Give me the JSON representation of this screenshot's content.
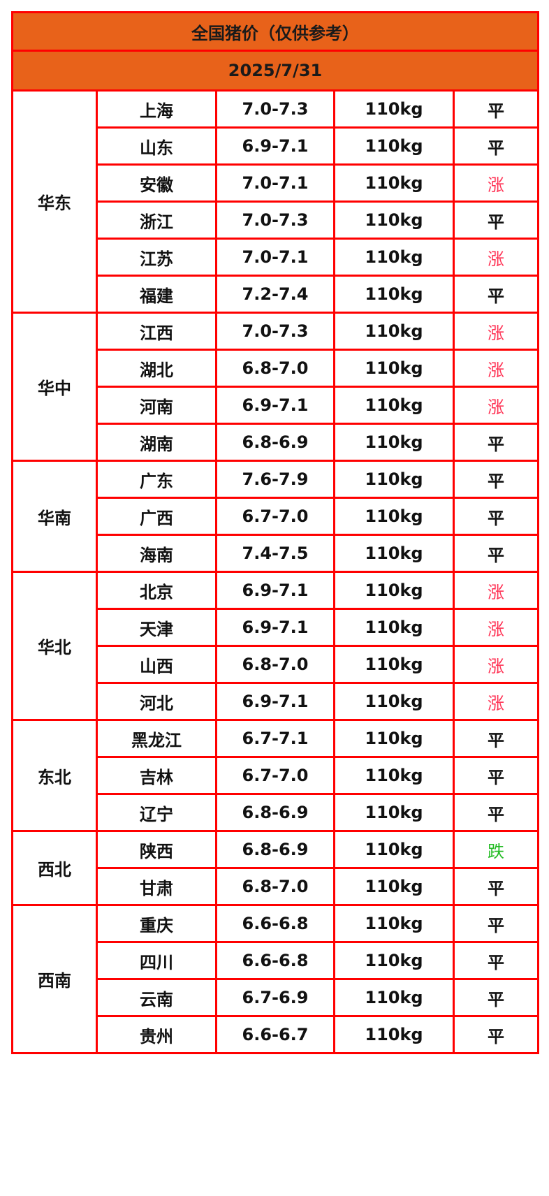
{
  "title": "全国猪价（仅供参考）",
  "date": "2025/7/31",
  "colors": {
    "header_bg": "#e8621a",
    "border": "#ff0000",
    "up": "#ff3355",
    "down": "#22bb22",
    "flat": "#111111"
  },
  "regions": [
    {
      "name": "华东",
      "rows": [
        {
          "province": "上海",
          "price": "7.0-7.3",
          "weight": "110kg",
          "trend": "平"
        },
        {
          "province": "山东",
          "price": "6.9-7.1",
          "weight": "110kg",
          "trend": "平"
        },
        {
          "province": "安徽",
          "price": "7.0-7.1",
          "weight": "110kg",
          "trend": "涨"
        },
        {
          "province": "浙江",
          "price": "7.0-7.3",
          "weight": "110kg",
          "trend": "平"
        },
        {
          "province": "江苏",
          "price": "7.0-7.1",
          "weight": "110kg",
          "trend": "涨"
        },
        {
          "province": "福建",
          "price": "7.2-7.4",
          "weight": "110kg",
          "trend": "平"
        }
      ]
    },
    {
      "name": "华中",
      "rows": [
        {
          "province": "江西",
          "price": "7.0-7.3",
          "weight": "110kg",
          "trend": "涨"
        },
        {
          "province": "湖北",
          "price": "6.8-7.0",
          "weight": "110kg",
          "trend": "涨"
        },
        {
          "province": "河南",
          "price": "6.9-7.1",
          "weight": "110kg",
          "trend": "涨"
        },
        {
          "province": "湖南",
          "price": "6.8-6.9",
          "weight": "110kg",
          "trend": "平"
        }
      ]
    },
    {
      "name": "华南",
      "rows": [
        {
          "province": "广东",
          "price": "7.6-7.9",
          "weight": "110kg",
          "trend": "平"
        },
        {
          "province": "广西",
          "price": "6.7-7.0",
          "weight": "110kg",
          "trend": "平"
        },
        {
          "province": "海南",
          "price": "7.4-7.5",
          "weight": "110kg",
          "trend": "平"
        }
      ]
    },
    {
      "name": "华北",
      "rows": [
        {
          "province": "北京",
          "price": "6.9-7.1",
          "weight": "110kg",
          "trend": "涨"
        },
        {
          "province": "天津",
          "price": "6.9-7.1",
          "weight": "110kg",
          "trend": "涨"
        },
        {
          "province": "山西",
          "price": "6.8-7.0",
          "weight": "110kg",
          "trend": "涨"
        },
        {
          "province": "河北",
          "price": "6.9-7.1",
          "weight": "110kg",
          "trend": "涨"
        }
      ]
    },
    {
      "name": "东北",
      "rows": [
        {
          "province": "黑龙江",
          "price": "6.7-7.1",
          "weight": "110kg",
          "trend": "平"
        },
        {
          "province": "吉林",
          "price": "6.7-7.0",
          "weight": "110kg",
          "trend": "平"
        },
        {
          "province": "辽宁",
          "price": "6.8-6.9",
          "weight": "110kg",
          "trend": "平"
        }
      ]
    },
    {
      "name": "西北",
      "rows": [
        {
          "province": "陕西",
          "price": "6.8-6.9",
          "weight": "110kg",
          "trend": "跌"
        },
        {
          "province": "甘肃",
          "price": "6.8-7.0",
          "weight": "110kg",
          "trend": "平"
        }
      ]
    },
    {
      "name": "西南",
      "rows": [
        {
          "province": "重庆",
          "price": "6.6-6.8",
          "weight": "110kg",
          "trend": "平"
        },
        {
          "province": "四川",
          "price": "6.6-6.8",
          "weight": "110kg",
          "trend": "平"
        },
        {
          "province": "云南",
          "price": "6.7-6.9",
          "weight": "110kg",
          "trend": "平"
        },
        {
          "province": "贵州",
          "price": "6.6-6.7",
          "weight": "110kg",
          "trend": "平"
        }
      ]
    }
  ]
}
